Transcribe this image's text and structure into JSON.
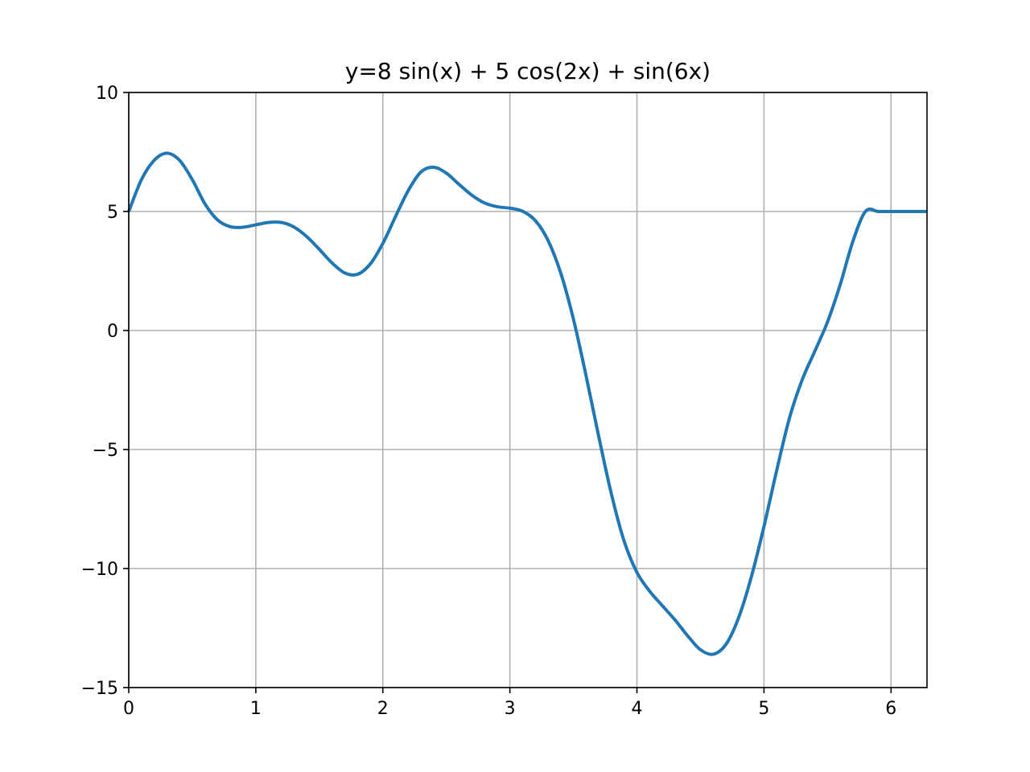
{
  "chart_data": {
    "type": "line",
    "title": "y=8 sin(x) + 5 cos(2x) + sin(6x)",
    "xlabel": "",
    "ylabel": "",
    "xlim": [
      0,
      6.283185307179586
    ],
    "ylim": [
      -15,
      10
    ],
    "grid": true,
    "x_ticks": [
      0,
      1,
      2,
      3,
      4,
      5,
      6
    ],
    "x_tick_labels": [
      "0",
      "1",
      "2",
      "3",
      "4",
      "5",
      "6"
    ],
    "y_ticks": [
      10,
      5,
      0,
      -5,
      -10,
      -15
    ],
    "y_tick_labels": [
      "10",
      "5",
      "0",
      "−5",
      "−10",
      "−15"
    ],
    "series": [
      {
        "color": "#1f77b4",
        "x": [
          0,
          0.1,
          0.2,
          0.3,
          0.4,
          0.5,
          0.6,
          0.7,
          0.8,
          0.9,
          1.0,
          1.1,
          1.2,
          1.3,
          1.4,
          1.5,
          1.6,
          1.7,
          1.8,
          1.9,
          2.0,
          2.1,
          2.2,
          2.3,
          2.4,
          2.5,
          2.6,
          2.7,
          2.8,
          2.9,
          3.0,
          3.1,
          3.2,
          3.3,
          3.4,
          3.5,
          3.6,
          3.7,
          3.8,
          3.9,
          4.0,
          4.1,
          4.2,
          4.3,
          4.4,
          4.5,
          4.6,
          4.7,
          4.8,
          4.9,
          5.0,
          5.1,
          5.2,
          5.3,
          5.4,
          5.5,
          5.6,
          5.7,
          5.8,
          5.9,
          6.0,
          6.1,
          6.2,
          6.283
        ],
        "y": [
          5.0,
          6.34,
          7.15,
          7.45,
          7.15,
          6.34,
          5.32,
          4.64,
          4.36,
          4.34,
          4.44,
          4.54,
          4.54,
          4.35,
          3.95,
          3.41,
          2.84,
          2.42,
          2.36,
          2.79,
          3.66,
          4.79,
          5.88,
          6.66,
          6.86,
          6.61,
          6.14,
          5.69,
          5.36,
          5.2,
          5.14,
          5.01,
          4.62,
          3.79,
          2.42,
          0.48,
          -1.91,
          -4.47,
          -6.89,
          -8.86,
          -10.16,
          -10.95,
          -11.56,
          -12.16,
          -12.83,
          -13.41,
          -13.6,
          -13.19,
          -12.07,
          -10.36,
          -8.23,
          -5.88,
          -3.69,
          -2.08,
          -0.87,
          0.36,
          1.93,
          3.75,
          5.01,
          5.0,
          5.0,
          5.0,
          5.0,
          5.0
        ]
      }
    ]
  }
}
